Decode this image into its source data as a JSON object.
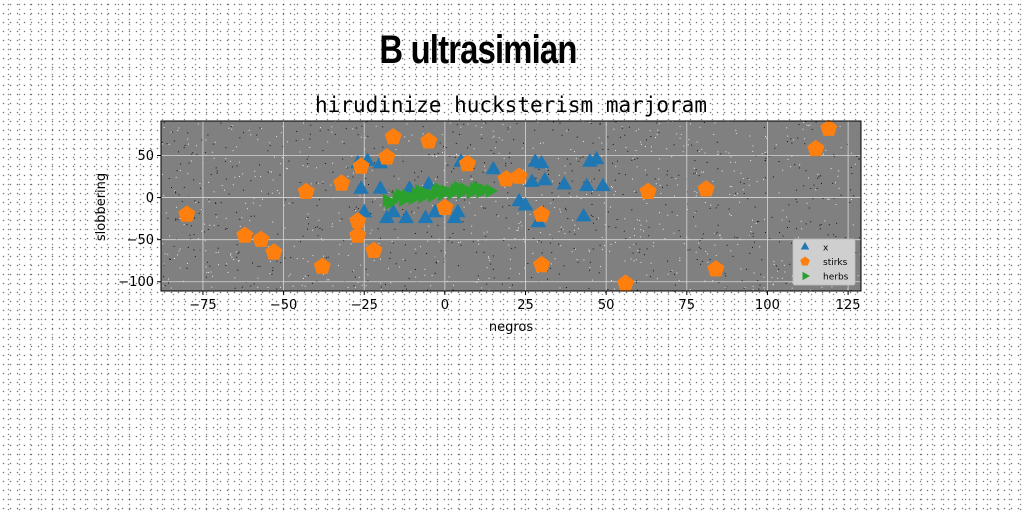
{
  "page_title": "B ultrasimian",
  "chart_data": {
    "type": "scatter",
    "title": "hirudinize hucksterism marjoram",
    "xlabel": "negros",
    "ylabel": "slobbering",
    "xlim": [
      -88,
      129
    ],
    "ylim": [
      -111,
      91
    ],
    "xticks": [
      -75,
      -50,
      -25,
      0,
      25,
      50,
      75,
      100,
      125
    ],
    "yticks": [
      50,
      0,
      -50,
      -100
    ],
    "grid": true,
    "plot_background": "#808080",
    "legend_position": "lower-right",
    "series": [
      {
        "name": "x",
        "marker": "triangle",
        "color": "#1f77b4",
        "points": [
          [
            -27,
            40
          ],
          [
            -24,
            43
          ],
          [
            -20,
            40
          ],
          [
            -26,
            10
          ],
          [
            -20,
            10
          ],
          [
            -11,
            10
          ],
          [
            -5,
            15
          ],
          [
            5,
            42
          ],
          [
            15,
            33
          ],
          [
            28,
            42
          ],
          [
            30,
            40
          ],
          [
            27,
            18
          ],
          [
            31,
            20
          ],
          [
            37,
            15
          ],
          [
            44,
            13
          ],
          [
            47,
            45
          ],
          [
            49,
            13
          ],
          [
            45,
            42
          ],
          [
            -25,
            -18
          ],
          [
            -18,
            -25
          ],
          [
            -12,
            -25
          ],
          [
            -6,
            -25
          ],
          [
            -3,
            -18
          ],
          [
            3,
            -25
          ],
          [
            4,
            -18
          ],
          [
            -16,
            -18
          ],
          [
            23,
            -5
          ],
          [
            25,
            -10
          ],
          [
            29,
            -30
          ],
          [
            43,
            -23
          ]
        ]
      },
      {
        "name": "stirks",
        "marker": "pentagon",
        "color": "#ff7f0e",
        "points": [
          [
            -80,
            -20
          ],
          [
            -62,
            -45
          ],
          [
            -57,
            -50
          ],
          [
            -53,
            -65
          ],
          [
            -43,
            7
          ],
          [
            -38,
            -82
          ],
          [
            -32,
            17
          ],
          [
            -27,
            -28
          ],
          [
            -27,
            -45
          ],
          [
            -26,
            37
          ],
          [
            -22,
            -63
          ],
          [
            -18,
            48
          ],
          [
            -16,
            72
          ],
          [
            -5,
            67
          ],
          [
            0,
            -12
          ],
          [
            7,
            40
          ],
          [
            19,
            22
          ],
          [
            23,
            25
          ],
          [
            30,
            -20
          ],
          [
            30,
            -80
          ],
          [
            56,
            -102
          ],
          [
            63,
            7
          ],
          [
            81,
            10
          ],
          [
            84,
            -85
          ],
          [
            115,
            58
          ],
          [
            119,
            82
          ]
        ]
      },
      {
        "name": "herbs",
        "marker": "right-triangle",
        "color": "#2ca02c",
        "points": [
          [
            -18,
            -3
          ],
          [
            -15,
            0
          ],
          [
            -12,
            2
          ],
          [
            -9,
            4
          ],
          [
            -6,
            5
          ],
          [
            -3,
            7
          ],
          [
            0,
            8
          ],
          [
            3,
            9
          ],
          [
            6,
            10
          ],
          [
            9,
            10
          ],
          [
            12,
            9
          ],
          [
            -17,
            -6
          ],
          [
            -13,
            -3
          ],
          [
            -10,
            -1
          ],
          [
            -7,
            1
          ],
          [
            -4,
            2
          ],
          [
            -1,
            4
          ],
          [
            2,
            5
          ],
          [
            5,
            6
          ],
          [
            8,
            6
          ],
          [
            11,
            7
          ],
          [
            14,
            8
          ],
          [
            -14,
            3
          ],
          [
            -8,
            8
          ],
          [
            -2,
            10
          ],
          [
            4,
            12
          ],
          [
            10,
            12
          ]
        ]
      }
    ]
  }
}
